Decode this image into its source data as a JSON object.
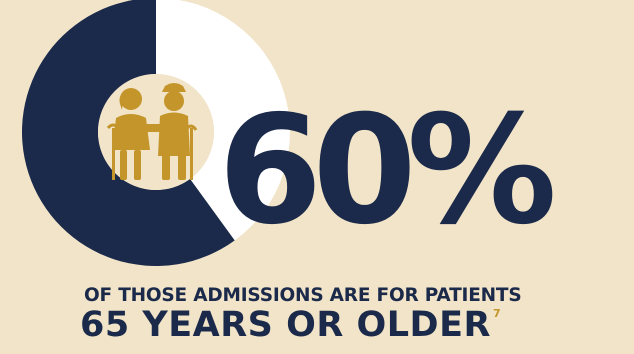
{
  "chart_data": {
    "type": "pie",
    "variant": "donut",
    "values": [
      60,
      40
    ],
    "highlight_value": "60%",
    "colors": {
      "filled": "#1b2a4a",
      "remaining": "#ffffff",
      "center": "#f1e4c8",
      "icon": "#c4952a"
    }
  },
  "text": {
    "percent": "60%",
    "line1": "OF THOSE ADMISSIONS ARE FOR PATIENTS",
    "line2": "65 YEARS OR OLDER",
    "footnote": "7"
  },
  "icon": "elderly-couple-icon"
}
